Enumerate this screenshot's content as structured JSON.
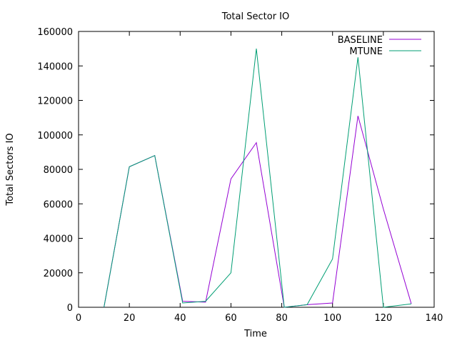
{
  "chart_data": {
    "type": "line",
    "title": "Total Sector IO",
    "xlabel": "Time",
    "ylabel": "Total Sectors IO",
    "xlim": [
      0,
      140
    ],
    "ylim": [
      0,
      160000
    ],
    "xticks": [
      0,
      20,
      40,
      60,
      80,
      100,
      120,
      140
    ],
    "yticks": [
      0,
      20000,
      40000,
      60000,
      80000,
      100000,
      120000,
      140000,
      160000
    ],
    "grid": false,
    "legend_position": "top-right",
    "series": [
      {
        "name": "BASELINE",
        "color": "#9400d3",
        "x": [
          10,
          20,
          30,
          41,
          50,
          60,
          70,
          81,
          90,
          100,
          110,
          120,
          131
        ],
        "y": [
          0,
          81500,
          88000,
          3500,
          3000,
          74500,
          95500,
          0,
          1500,
          2500,
          111000,
          57000,
          2000
        ]
      },
      {
        "name": "MTUNE",
        "color": "#009e73",
        "x": [
          10,
          20,
          30,
          41,
          50,
          60,
          70,
          81,
          90,
          100,
          110,
          120,
          131
        ],
        "y": [
          0,
          81500,
          88000,
          2500,
          3500,
          20000,
          150000,
          0,
          1500,
          28000,
          145000,
          0,
          2000
        ]
      }
    ]
  }
}
